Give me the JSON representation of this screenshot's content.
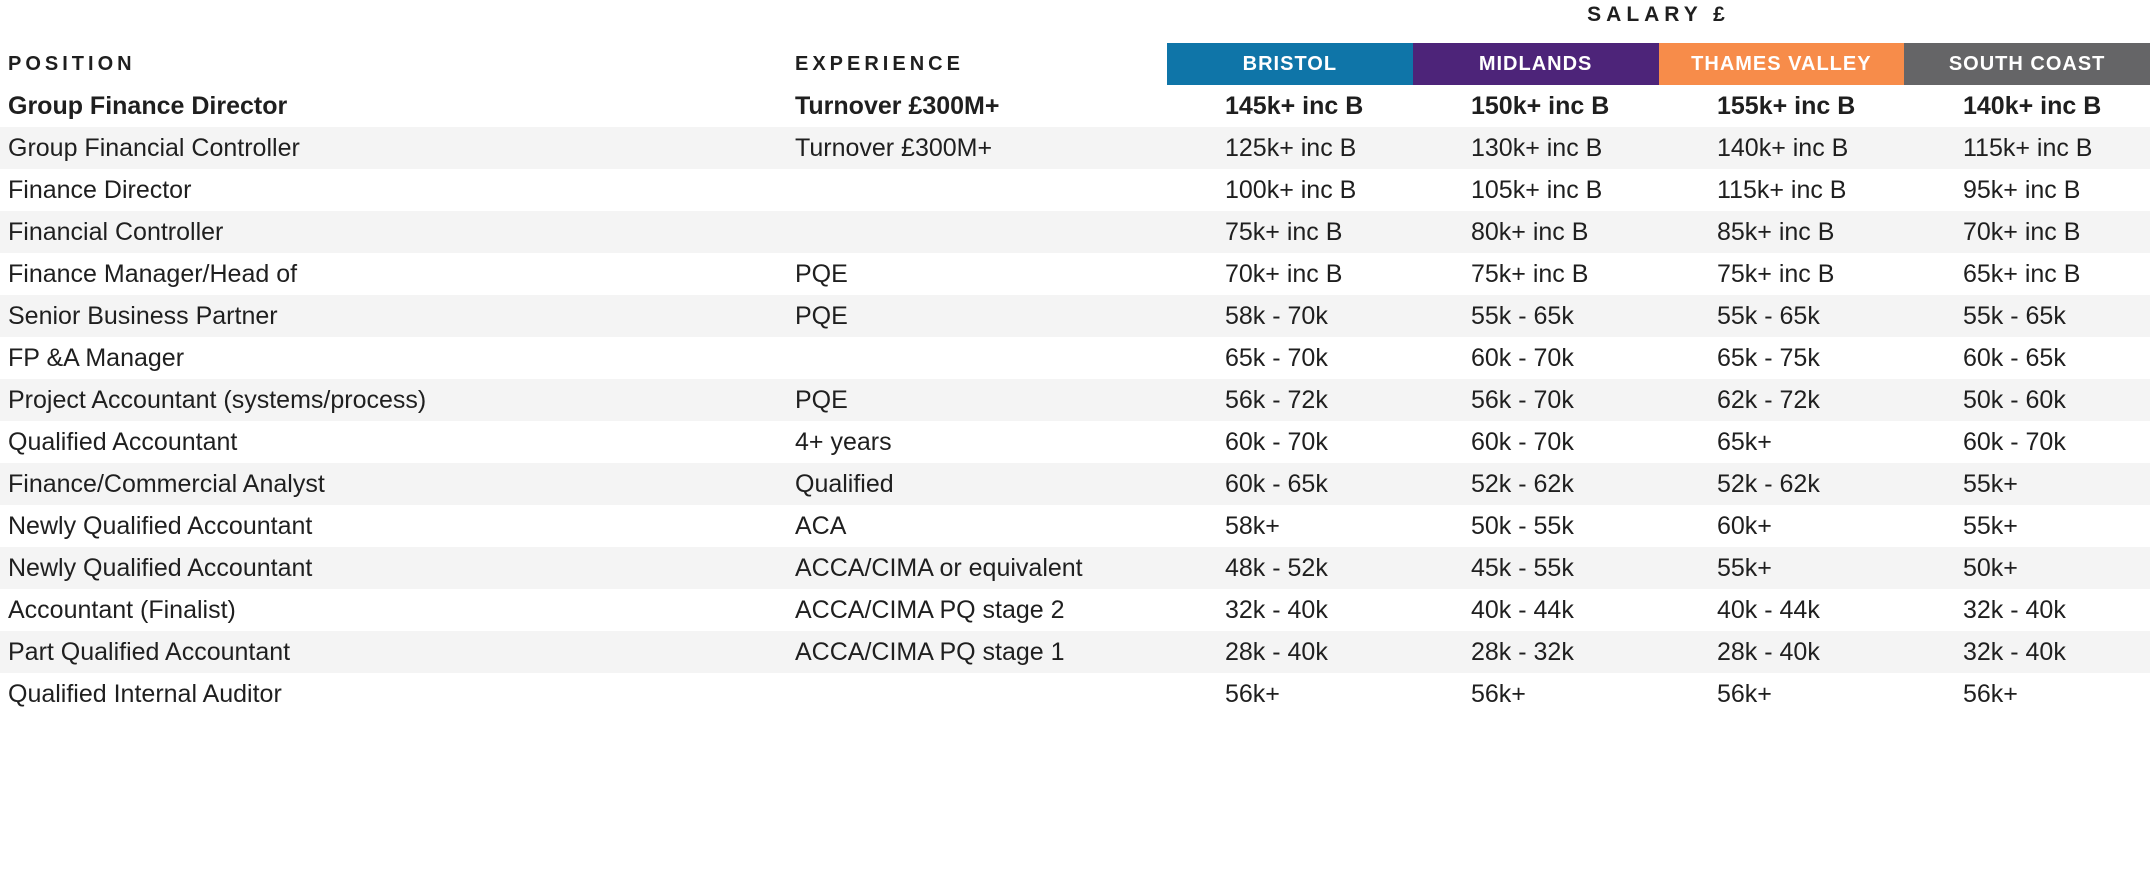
{
  "table": {
    "salary_group_header": "SALARY £",
    "columns": {
      "position": "POSITION",
      "experience": "EXPERIENCE"
    },
    "regions": [
      {
        "label": "BRISTOL",
        "color": "#0f75a8"
      },
      {
        "label": "MIDLANDS",
        "color": "#4d2479"
      },
      {
        "label": "THAMES VALLEY",
        "color": "#f78c4a"
      },
      {
        "label": "SOUTH COAST",
        "color": "#656567"
      }
    ],
    "stripe_color": "#f4f4f4",
    "rows": [
      {
        "position": "Group Finance Director",
        "experience": "Turnover £300M+",
        "salaries": [
          "145k+ inc B",
          "150k+ inc B",
          "155k+ inc B",
          "140k+ inc B"
        ],
        "bold": true
      },
      {
        "position": "Group Financial Controller",
        "experience": "Turnover £300M+",
        "salaries": [
          "125k+ inc B",
          "130k+ inc B",
          "140k+ inc B",
          "115k+ inc B"
        ],
        "bold": false
      },
      {
        "position": "Finance Director",
        "experience": "",
        "salaries": [
          "100k+ inc B",
          "105k+ inc B",
          "115k+ inc B",
          "95k+ inc B"
        ],
        "bold": false
      },
      {
        "position": "Financial Controller",
        "experience": "",
        "salaries": [
          "75k+ inc B",
          "80k+ inc B",
          "85k+ inc B",
          "70k+ inc B"
        ],
        "bold": false
      },
      {
        "position": "Finance Manager/Head of",
        "experience": "PQE",
        "salaries": [
          "70k+ inc B",
          "75k+ inc B",
          "75k+ inc B",
          "65k+ inc B"
        ],
        "bold": false
      },
      {
        "position": "Senior Business Partner",
        "experience": "PQE",
        "salaries": [
          "58k - 70k",
          "55k - 65k",
          "55k - 65k",
          "55k - 65k"
        ],
        "bold": false
      },
      {
        "position": "FP &A Manager",
        "experience": "",
        "salaries": [
          "65k - 70k",
          "60k - 70k",
          "65k - 75k",
          "60k - 65k"
        ],
        "bold": false
      },
      {
        "position": "Project Accountant (systems/process)",
        "experience": "PQE",
        "salaries": [
          "56k - 72k",
          "56k - 70k",
          "62k - 72k",
          "50k - 60k"
        ],
        "bold": false
      },
      {
        "position": "Qualified Accountant",
        "experience": "4+ years",
        "salaries": [
          "60k - 70k",
          "60k - 70k",
          "65k+",
          "60k - 70k"
        ],
        "bold": false
      },
      {
        "position": "Finance/Commercial Analyst",
        "experience": "Qualified",
        "salaries": [
          "60k - 65k",
          "52k - 62k",
          "52k - 62k",
          "55k+"
        ],
        "bold": false
      },
      {
        "position": "Newly Qualified Accountant",
        "experience": "ACA",
        "salaries": [
          "58k+",
          "50k - 55k",
          "60k+",
          "55k+"
        ],
        "bold": false
      },
      {
        "position": "Newly Qualified Accountant",
        "experience": "ACCA/CIMA or equivalent",
        "salaries": [
          "48k - 52k",
          "45k - 55k",
          "55k+",
          "50k+"
        ],
        "bold": false
      },
      {
        "position": "Accountant (Finalist)",
        "experience": "ACCA/CIMA PQ stage 2",
        "salaries": [
          "32k - 40k",
          "40k - 44k",
          "40k - 44k",
          "32k - 40k"
        ],
        "bold": false
      },
      {
        "position": "Part Qualified Accountant",
        "experience": "ACCA/CIMA PQ stage 1",
        "salaries": [
          "28k - 40k",
          "28k - 32k",
          "28k - 40k",
          "32k - 40k"
        ],
        "bold": false
      },
      {
        "position": "Qualified Internal Auditor",
        "experience": "",
        "salaries": [
          "56k+",
          "56k+",
          "56k+",
          "56k+"
        ],
        "bold": false
      }
    ]
  }
}
